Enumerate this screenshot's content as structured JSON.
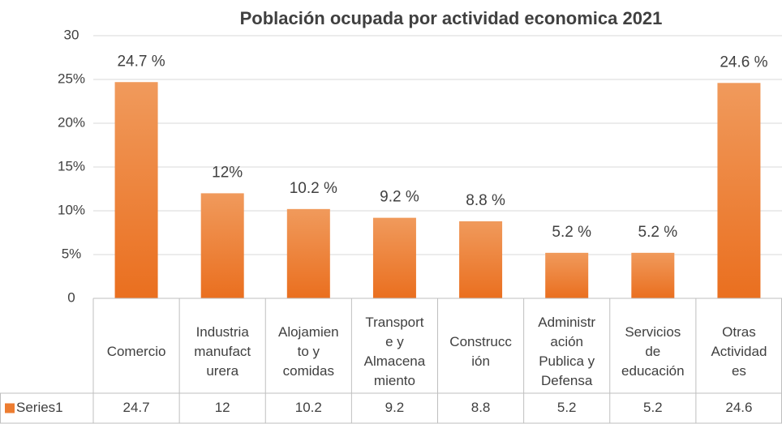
{
  "chart_data": {
    "type": "bar",
    "title": "Población ocupada por actividad economica 2021",
    "categories": [
      [
        "Comercio"
      ],
      [
        "Industria",
        "manufact",
        "urera"
      ],
      [
        "Alojamien",
        "to y",
        "comidas"
      ],
      [
        "Transport",
        "e y",
        "Almacena",
        "miento"
      ],
      [
        "Construcc",
        "ión"
      ],
      [
        "Administr",
        "ación",
        "Publica y",
        "Defensa"
      ],
      [
        "Servicios",
        "de",
        "educación"
      ],
      [
        "Otras",
        "Actividad",
        "es"
      ]
    ],
    "series": [
      {
        "name": "Series1",
        "color": "#ed7d31",
        "values": [
          24.7,
          12,
          10.2,
          9.2,
          8.8,
          5.2,
          5.2,
          24.6
        ],
        "value_labels": [
          "24.7 %",
          "12%",
          "10.2 %",
          "9.2 %",
          "8.8 %",
          "5.2 %",
          "5.2 %",
          "24.6 %"
        ]
      }
    ],
    "ylim": [
      0,
      30
    ],
    "yticks": [
      0,
      {
        "value": 5,
        "label": "5%"
      },
      {
        "value": 10,
        "label": "10%"
      },
      {
        "value": 15,
        "label": "15%"
      },
      {
        "value": 20,
        "label": "20%"
      },
      {
        "value": 25,
        "label": "25%"
      },
      30
    ],
    "grid": true,
    "data_table": true
  }
}
